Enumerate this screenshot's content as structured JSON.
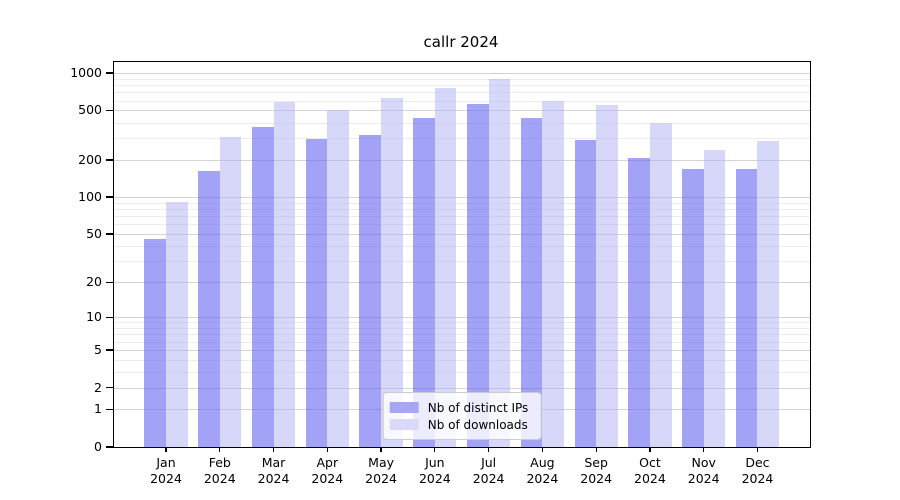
{
  "chart_data": {
    "type": "bar",
    "title": "callr 2024",
    "categories": [
      "Jan 2024",
      "Feb 2024",
      "Mar 2024",
      "Apr 2024",
      "May 2024",
      "Jun 2024",
      "Jul 2024",
      "Aug 2024",
      "Sep 2024",
      "Oct 2024",
      "Nov 2024",
      "Dec 2024"
    ],
    "series": [
      {
        "name": "Nb of distinct IPs",
        "color": "#a6a6f5",
        "fill": "rgba(100,100,242,0.6)",
        "values": [
          46,
          164,
          370,
          296,
          320,
          438,
          560,
          438,
          288,
          208,
          168,
          170
        ]
      },
      {
        "name": "Nb of downloads",
        "color": "#d9d9fa",
        "fill": "rgba(178,178,245,0.52)",
        "values": [
          92,
          306,
          585,
          507,
          630,
          762,
          890,
          597,
          550,
          395,
          241,
          284
        ]
      }
    ],
    "yscale": "log1p",
    "yticks": [
      0,
      1,
      2,
      5,
      10,
      20,
      50,
      100,
      200,
      500,
      1000
    ],
    "ylim": [
      0,
      1225
    ],
    "grid": true,
    "legend_position": "lower center",
    "grid_major_color": "#d4d4d4",
    "grid_minor_color": "#ececec",
    "axis_color": "#000000"
  }
}
